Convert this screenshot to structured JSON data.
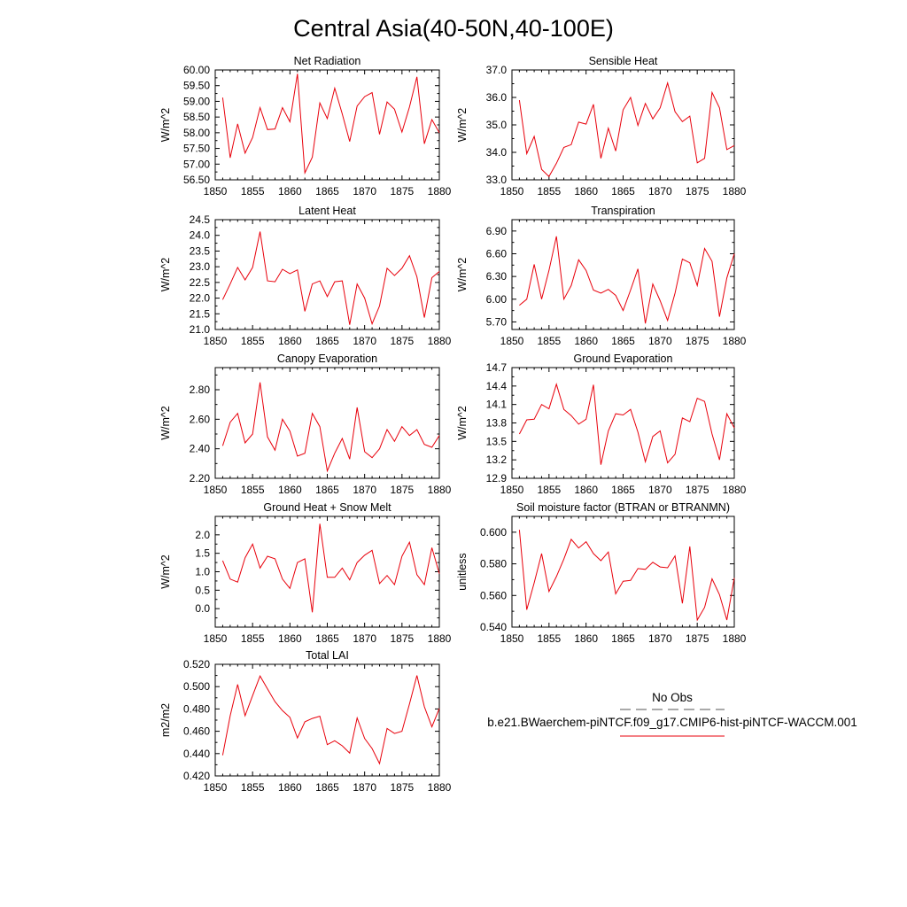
{
  "title": "Central Asia(40-50N,40-100E)",
  "colors": {
    "model": "#e8000b",
    "obs": "#555555"
  },
  "legend": {
    "obs_label": "No Obs",
    "model_label": "b.e21.BWaerchem-piNTCF.f09_g17.CMIP6-hist-piNTCF-WACCM.001"
  },
  "chart_data": [
    {
      "type": "line",
      "title": "Net Radiation",
      "ylabel": "W/m^2",
      "xlim": [
        1850,
        1880
      ],
      "xticks": [
        1850,
        1855,
        1860,
        1865,
        1870,
        1875,
        1880
      ],
      "ylim": [
        56.5,
        60.0
      ],
      "yticks": [
        56.5,
        57.0,
        57.5,
        58.0,
        58.5,
        59.0,
        59.5,
        60.0
      ],
      "ytick_labels": [
        "56.50",
        "57.00",
        "57.50",
        "58.00",
        "58.50",
        "59.00",
        "59.50",
        "60.00"
      ],
      "x": [
        1851,
        1852,
        1853,
        1854,
        1855,
        1856,
        1857,
        1858,
        1859,
        1860,
        1861,
        1862,
        1863,
        1864,
        1865,
        1866,
        1867,
        1868,
        1869,
        1870,
        1871,
        1872,
        1873,
        1874,
        1875,
        1876,
        1877,
        1878,
        1879,
        1880
      ],
      "y": [
        59.12,
        57.2,
        58.28,
        57.35,
        57.85,
        58.8,
        58.1,
        58.12,
        58.8,
        58.35,
        59.88,
        56.72,
        57.22,
        58.95,
        58.45,
        59.42,
        58.6,
        57.72,
        58.85,
        59.15,
        59.28,
        57.95,
        58.98,
        58.75,
        58.02,
        58.82,
        59.78,
        57.65,
        58.42,
        58.0
      ]
    },
    {
      "type": "line",
      "title": "Sensible Heat",
      "ylabel": "W/m^2",
      "xlim": [
        1850,
        1880
      ],
      "xticks": [
        1850,
        1855,
        1860,
        1865,
        1870,
        1875,
        1880
      ],
      "ylim": [
        33.0,
        37.0
      ],
      "yticks": [
        33.0,
        34.0,
        35.0,
        36.0,
        37.0
      ],
      "ytick_labels": [
        "33.0",
        "34.0",
        "35.0",
        "36.0",
        "37.0"
      ],
      "x": [
        1851,
        1852,
        1853,
        1854,
        1855,
        1856,
        1857,
        1858,
        1859,
        1860,
        1861,
        1862,
        1863,
        1864,
        1865,
        1866,
        1867,
        1868,
        1869,
        1870,
        1871,
        1872,
        1873,
        1874,
        1875,
        1876,
        1877,
        1878,
        1879,
        1880
      ],
      "y": [
        35.9,
        33.95,
        34.58,
        33.38,
        33.12,
        33.6,
        34.18,
        34.28,
        35.1,
        35.03,
        35.75,
        33.78,
        34.88,
        34.05,
        35.55,
        36.0,
        34.98,
        35.78,
        35.22,
        35.62,
        36.53,
        35.48,
        35.12,
        35.32,
        33.62,
        33.78,
        36.18,
        35.62,
        34.1,
        34.25
      ]
    },
    {
      "type": "line",
      "title": "Latent Heat",
      "ylabel": "W/m^2",
      "xlim": [
        1850,
        1880
      ],
      "xticks": [
        1850,
        1855,
        1860,
        1865,
        1870,
        1875,
        1880
      ],
      "ylim": [
        21.0,
        24.5
      ],
      "yticks": [
        21.0,
        21.5,
        22.0,
        22.5,
        23.0,
        23.5,
        24.0,
        24.5
      ],
      "ytick_labels": [
        "21.0",
        "21.5",
        "22.0",
        "22.5",
        "23.0",
        "23.5",
        "24.0",
        "24.5"
      ],
      "x": [
        1851,
        1852,
        1853,
        1854,
        1855,
        1856,
        1857,
        1858,
        1859,
        1860,
        1861,
        1862,
        1863,
        1864,
        1865,
        1866,
        1867,
        1868,
        1869,
        1870,
        1871,
        1872,
        1873,
        1874,
        1875,
        1876,
        1877,
        1878,
        1879,
        1880
      ],
      "y": [
        21.95,
        22.45,
        22.98,
        22.58,
        22.98,
        24.12,
        22.55,
        22.52,
        22.92,
        22.78,
        22.9,
        21.58,
        22.45,
        22.55,
        22.05,
        22.52,
        22.55,
        21.15,
        22.45,
        22.0,
        21.18,
        21.75,
        22.95,
        22.72,
        22.95,
        23.35,
        22.68,
        21.38,
        22.65,
        22.85
      ]
    },
    {
      "type": "line",
      "title": "Transpiration",
      "ylabel": "W/m^2",
      "xlim": [
        1850,
        1880
      ],
      "xticks": [
        1850,
        1855,
        1860,
        1865,
        1870,
        1875,
        1880
      ],
      "ylim": [
        5.6,
        7.05
      ],
      "yticks": [
        5.7,
        6.0,
        6.3,
        6.6,
        6.9
      ],
      "ytick_labels": [
        "5.70",
        "6.00",
        "6.30",
        "6.60",
        "6.90"
      ],
      "x": [
        1851,
        1852,
        1853,
        1854,
        1855,
        1856,
        1857,
        1858,
        1859,
        1860,
        1861,
        1862,
        1863,
        1864,
        1865,
        1866,
        1867,
        1868,
        1869,
        1870,
        1871,
        1872,
        1873,
        1874,
        1875,
        1876,
        1877,
        1878,
        1879,
        1880
      ],
      "y": [
        5.92,
        6.0,
        6.46,
        6.0,
        6.38,
        6.83,
        6.0,
        6.18,
        6.52,
        6.38,
        6.12,
        6.08,
        6.13,
        6.05,
        5.85,
        6.12,
        6.4,
        5.68,
        6.2,
        5.98,
        5.72,
        6.08,
        6.53,
        6.48,
        6.18,
        6.67,
        6.5,
        5.77,
        6.28,
        6.6
      ]
    },
    {
      "type": "line",
      "title": "Canopy Evaporation",
      "ylabel": "W/m^2",
      "xlim": [
        1850,
        1880
      ],
      "xticks": [
        1850,
        1855,
        1860,
        1865,
        1870,
        1875,
        1880
      ],
      "ylim": [
        2.2,
        2.95
      ],
      "yticks": [
        2.2,
        2.4,
        2.6,
        2.8
      ],
      "ytick_labels": [
        "2.20",
        "2.40",
        "2.60",
        "2.80"
      ],
      "x": [
        1851,
        1852,
        1853,
        1854,
        1855,
        1856,
        1857,
        1858,
        1859,
        1860,
        1861,
        1862,
        1863,
        1864,
        1865,
        1866,
        1867,
        1868,
        1869,
        1870,
        1871,
        1872,
        1873,
        1874,
        1875,
        1876,
        1877,
        1878,
        1879,
        1880
      ],
      "y": [
        2.42,
        2.58,
        2.64,
        2.44,
        2.5,
        2.85,
        2.48,
        2.39,
        2.6,
        2.52,
        2.35,
        2.37,
        2.64,
        2.55,
        2.25,
        2.37,
        2.47,
        2.33,
        2.68,
        2.38,
        2.34,
        2.4,
        2.53,
        2.45,
        2.55,
        2.49,
        2.53,
        2.43,
        2.41,
        2.49
      ]
    },
    {
      "type": "line",
      "title": "Ground Evaporation",
      "ylabel": "W/m^2",
      "xlim": [
        1850,
        1880
      ],
      "xticks": [
        1850,
        1855,
        1860,
        1865,
        1870,
        1875,
        1880
      ],
      "ylim": [
        12.9,
        14.7
      ],
      "yticks": [
        12.9,
        13.2,
        13.5,
        13.8,
        14.1,
        14.4,
        14.7
      ],
      "ytick_labels": [
        "12.9",
        "13.2",
        "13.5",
        "13.8",
        "14.1",
        "14.4",
        "14.7"
      ],
      "x": [
        1851,
        1852,
        1853,
        1854,
        1855,
        1856,
        1857,
        1858,
        1859,
        1860,
        1861,
        1862,
        1863,
        1864,
        1865,
        1866,
        1867,
        1868,
        1869,
        1870,
        1871,
        1872,
        1873,
        1874,
        1875,
        1876,
        1877,
        1878,
        1879,
        1880
      ],
      "y": [
        13.62,
        13.85,
        13.86,
        14.1,
        14.03,
        14.43,
        14.02,
        13.92,
        13.78,
        13.86,
        14.42,
        13.12,
        13.67,
        13.95,
        13.93,
        14.02,
        13.65,
        13.17,
        13.58,
        13.67,
        13.15,
        13.29,
        13.88,
        13.82,
        14.2,
        14.15,
        13.62,
        13.2,
        13.95,
        13.72
      ]
    },
    {
      "type": "line",
      "title": "Ground Heat + Snow Melt",
      "ylabel": "W/m^2",
      "xlim": [
        1850,
        1880
      ],
      "xticks": [
        1850,
        1855,
        1860,
        1865,
        1870,
        1875,
        1880
      ],
      "ylim": [
        -0.5,
        2.5
      ],
      "yticks": [
        0.0,
        0.5,
        1.0,
        1.5,
        2.0
      ],
      "ytick_labels": [
        "0.0",
        "0.5",
        "1.0",
        "1.5",
        "2.0"
      ],
      "x": [
        1851,
        1852,
        1853,
        1854,
        1855,
        1856,
        1857,
        1858,
        1859,
        1860,
        1861,
        1862,
        1863,
        1864,
        1865,
        1866,
        1867,
        1868,
        1869,
        1870,
        1871,
        1872,
        1873,
        1874,
        1875,
        1876,
        1877,
        1878,
        1879,
        1880
      ],
      "y": [
        1.3,
        0.8,
        0.72,
        1.38,
        1.75,
        1.1,
        1.42,
        1.35,
        0.8,
        0.55,
        1.25,
        1.35,
        -0.1,
        2.3,
        0.85,
        0.85,
        1.1,
        0.78,
        1.25,
        1.45,
        1.58,
        0.68,
        0.9,
        0.65,
        1.42,
        1.8,
        0.92,
        0.65,
        1.65,
        0.95
      ]
    },
    {
      "type": "line",
      "title": "Soil moisture factor (BTRAN or BTRANMN)",
      "ylabel": "unitless",
      "xlim": [
        1850,
        1880
      ],
      "xticks": [
        1850,
        1855,
        1860,
        1865,
        1870,
        1875,
        1880
      ],
      "ylim": [
        0.54,
        0.61
      ],
      "yticks": [
        0.54,
        0.56,
        0.58,
        0.6
      ],
      "ytick_labels": [
        "0.540",
        "0.560",
        "0.580",
        "0.600"
      ],
      "x": [
        1851,
        1852,
        1853,
        1854,
        1855,
        1856,
        1857,
        1858,
        1859,
        1860,
        1861,
        1862,
        1863,
        1864,
        1865,
        1866,
        1867,
        1868,
        1869,
        1870,
        1871,
        1872,
        1873,
        1874,
        1875,
        1876,
        1877,
        1878,
        1879,
        1880
      ],
      "y": [
        0.6015,
        0.551,
        0.568,
        0.5865,
        0.5625,
        0.572,
        0.583,
        0.5955,
        0.59,
        0.594,
        0.5865,
        0.582,
        0.5875,
        0.561,
        0.569,
        0.5695,
        0.577,
        0.5765,
        0.581,
        0.578,
        0.5775,
        0.585,
        0.555,
        0.591,
        0.5445,
        0.5525,
        0.5705,
        0.5605,
        0.5445,
        0.571
      ]
    },
    {
      "type": "line",
      "title": "Total LAI",
      "ylabel": "m2/m2",
      "xlim": [
        1850,
        1880
      ],
      "xticks": [
        1850,
        1855,
        1860,
        1865,
        1870,
        1875,
        1880
      ],
      "ylim": [
        0.42,
        0.52
      ],
      "yticks": [
        0.42,
        0.44,
        0.46,
        0.48,
        0.5,
        0.52
      ],
      "ytick_labels": [
        "0.420",
        "0.440",
        "0.460",
        "0.480",
        "0.500",
        "0.520"
      ],
      "x": [
        1851,
        1852,
        1853,
        1854,
        1855,
        1856,
        1857,
        1858,
        1859,
        1860,
        1861,
        1862,
        1863,
        1864,
        1865,
        1866,
        1867,
        1868,
        1869,
        1870,
        1871,
        1872,
        1873,
        1874,
        1875,
        1876,
        1877,
        1878,
        1879,
        1880
      ],
      "y": [
        0.4385,
        0.474,
        0.502,
        0.474,
        0.492,
        0.5095,
        0.498,
        0.4865,
        0.4785,
        0.4725,
        0.454,
        0.4685,
        0.4715,
        0.4735,
        0.448,
        0.4515,
        0.447,
        0.4405,
        0.472,
        0.4535,
        0.4445,
        0.431,
        0.4625,
        0.458,
        0.46,
        0.4845,
        0.51,
        0.482,
        0.464,
        0.4805
      ]
    }
  ]
}
